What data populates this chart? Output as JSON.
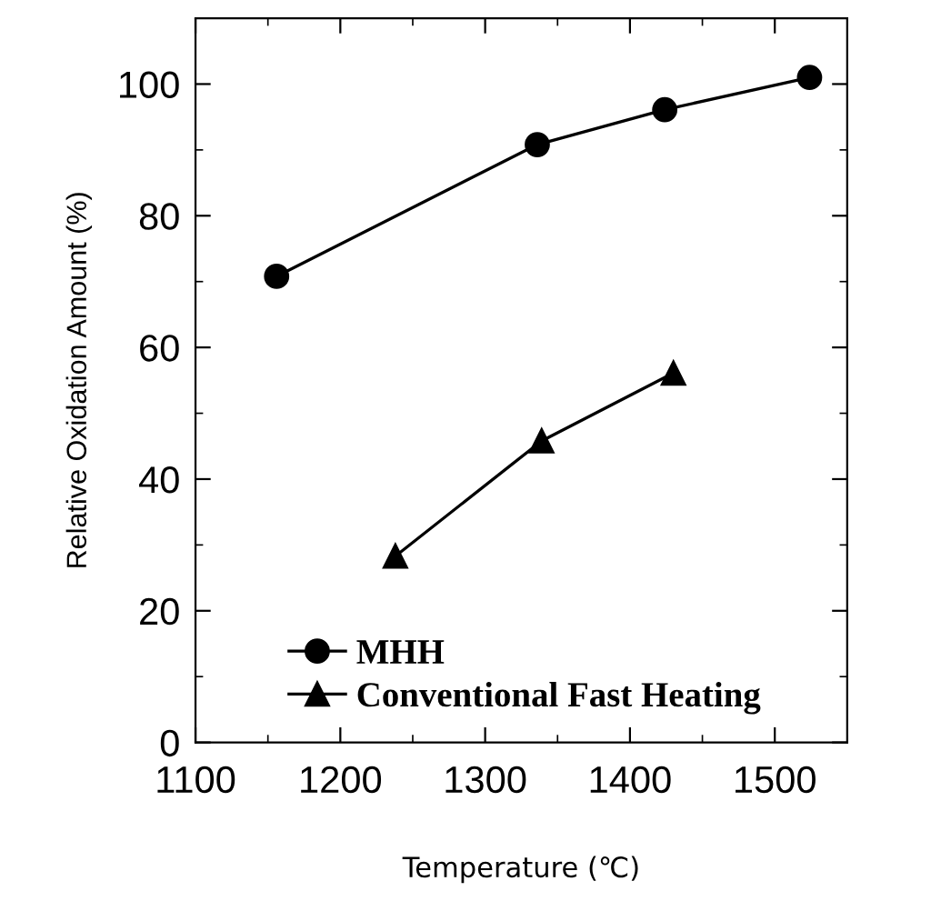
{
  "chart_data": {
    "type": "line",
    "xlabel": "Temperature (℃)",
    "ylabel": "Relative Oxidation Amount (%)",
    "xlim": [
      1100,
      1550
    ],
    "xticks": [
      1100,
      1200,
      1300,
      1400,
      1500
    ],
    "ylim": [
      0,
      110
    ],
    "yticks": [
      0,
      20,
      40,
      60,
      80,
      100
    ],
    "grid": false,
    "legend": "bottom left",
    "line_style": "solid",
    "series": [
      {
        "name": "MHH",
        "color": "#000000",
        "marker": "circle",
        "x": [
          1156,
          1336,
          1424,
          1524
        ],
        "values": [
          70.8,
          90.8,
          96.1,
          101
        ]
      },
      {
        "name": "Conventional Fast Heating",
        "color": "#000000",
        "marker": "triangle",
        "x": [
          1238,
          1339,
          1430
        ],
        "values": [
          28.3,
          45.8,
          56.1
        ]
      }
    ]
  }
}
